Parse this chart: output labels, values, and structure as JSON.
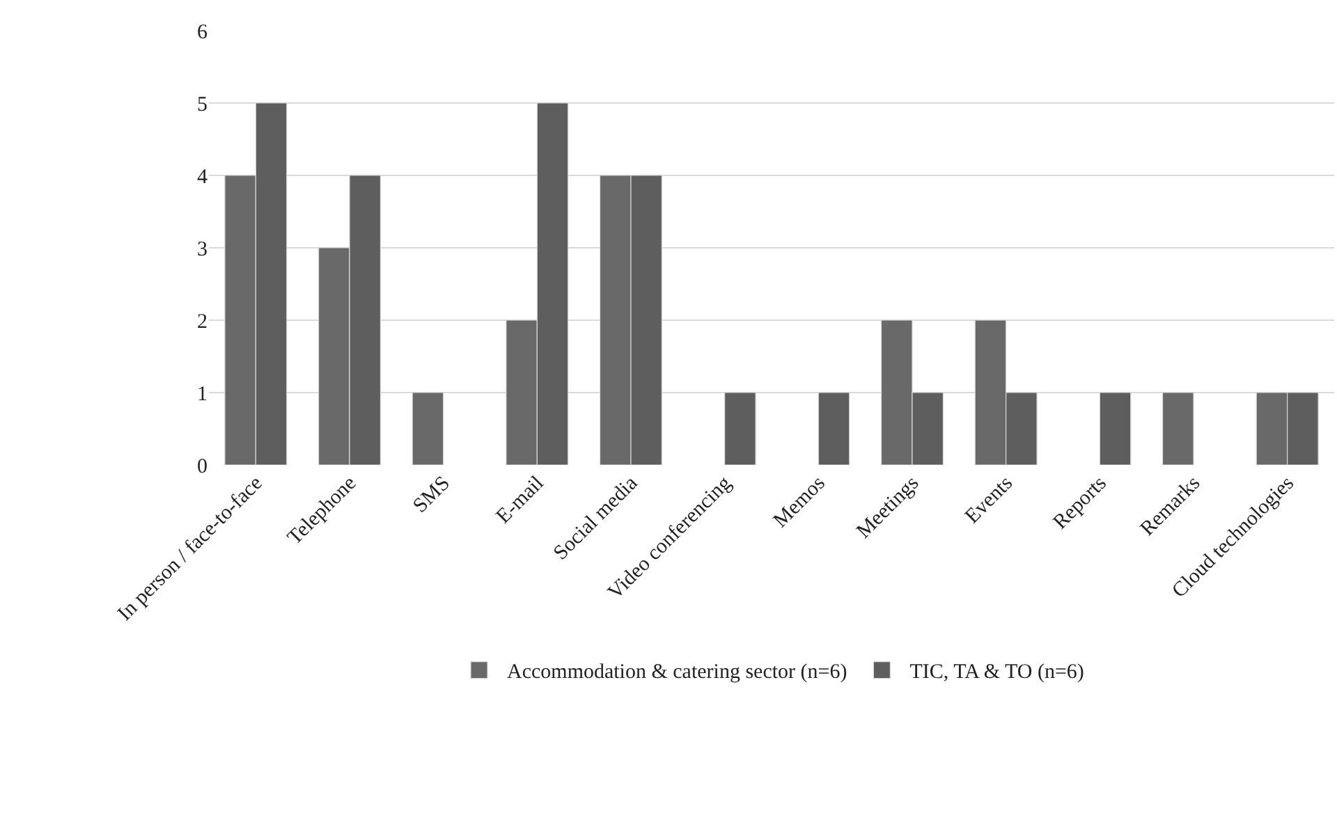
{
  "chart_data": {
    "type": "bar",
    "categories": [
      "In person / face-to-face",
      "Telephone",
      "SMS",
      "E-mail",
      "Social media",
      "Video conferencing",
      "Memos",
      "Meetings",
      "Events",
      "Reports",
      "Remarks",
      "Cloud technologies"
    ],
    "series": [
      {
        "name": "Accommodation & catering sector (n=6)",
        "color": "#696969",
        "values": [
          4,
          3,
          1,
          2,
          4,
          0,
          0,
          2,
          2,
          0,
          1,
          1
        ]
      },
      {
        "name": "TIC, TA & TO (n=6)",
        "color": "#5e5e5e",
        "values": [
          5,
          4,
          0,
          5,
          4,
          1,
          1,
          1,
          1,
          1,
          0,
          1
        ]
      }
    ],
    "ylim": [
      0,
      6
    ],
    "yticks": [
      0,
      1,
      2,
      3,
      4,
      5,
      6
    ],
    "grid": "y",
    "legend": "bottom"
  }
}
